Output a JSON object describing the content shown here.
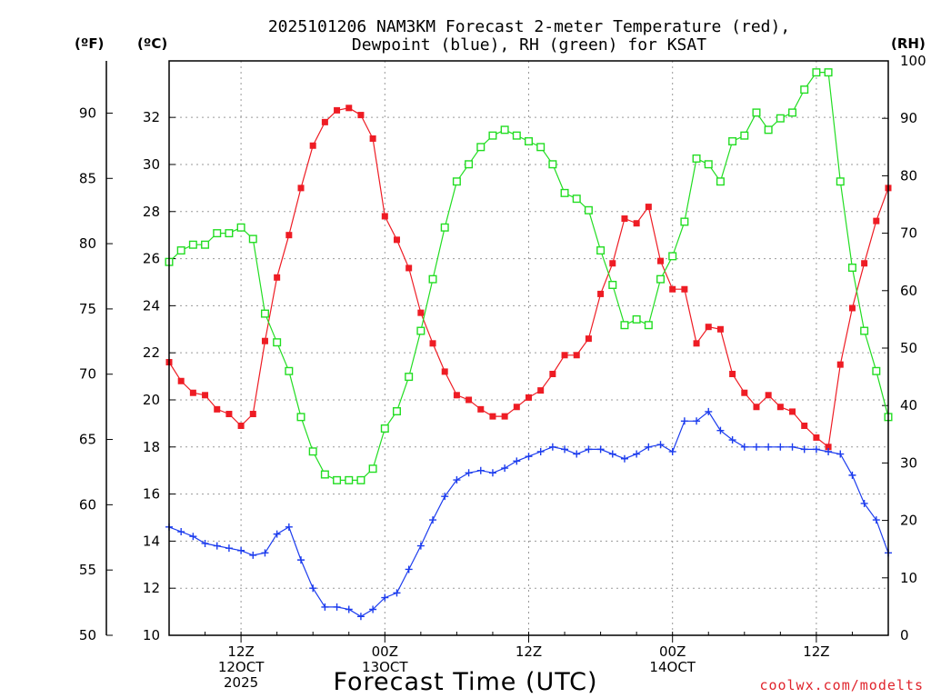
{
  "chart_data": {
    "type": "line",
    "title_lines": [
      "2025101206 NAM3KM Forecast 2-meter Temperature (red),",
      "Dewpoint (blue), RH (green) for KSAT"
    ],
    "xlabel": "Forecast Time (UTC)",
    "credit": "coolwx.com/modelts",
    "x_range_hours": [
      0,
      60
    ],
    "x_ticks": [
      {
        "hour": 6,
        "lines": [
          "12Z",
          "12OCT",
          "2025"
        ]
      },
      {
        "hour": 18,
        "lines": [
          "00Z",
          "13OCT"
        ]
      },
      {
        "hour": 30,
        "lines": [
          "12Z",
          ""
        ]
      },
      {
        "hour": 42,
        "lines": [
          "00Z",
          "14OCT"
        ]
      },
      {
        "hour": 54,
        "lines": [
          "12Z",
          ""
        ]
      }
    ],
    "axes": {
      "fahrenheit": {
        "unit_label": "(ºF)",
        "range": [
          50,
          94
        ],
        "ticks": [
          50,
          55,
          60,
          65,
          70,
          75,
          80,
          85,
          90
        ]
      },
      "celsius": {
        "unit_label": "(ºC)",
        "range": [
          10,
          34.4
        ],
        "ticks": [
          10,
          12,
          14,
          16,
          18,
          20,
          22,
          24,
          26,
          28,
          30,
          32
        ]
      },
      "rh": {
        "unit_label": "(RH)",
        "range": [
          0,
          100
        ],
        "ticks": [
          0,
          10,
          20,
          30,
          40,
          50,
          60,
          70,
          80,
          90,
          100
        ]
      }
    },
    "series": [
      {
        "name": "2-meter Temperature",
        "axis": "celsius",
        "color": "#ee1c24",
        "marker": "filled-square",
        "x": [
          0,
          1,
          2,
          3,
          4,
          5,
          6,
          7,
          8,
          9,
          10,
          11,
          12,
          13,
          14,
          15,
          16,
          17,
          18,
          19,
          20,
          21,
          22,
          23,
          24,
          25,
          26,
          27,
          28,
          29,
          30,
          31,
          32,
          33,
          34,
          35,
          36,
          37,
          38,
          39,
          40,
          41,
          42,
          43,
          44,
          45,
          46,
          47,
          48,
          49,
          50,
          51,
          52,
          53,
          54,
          55,
          56,
          57,
          58,
          59,
          60
        ],
        "values": [
          21.6,
          20.8,
          20.3,
          20.2,
          19.6,
          19.4,
          18.9,
          19.4,
          22.5,
          25.2,
          27.0,
          29.0,
          30.8,
          31.8,
          32.3,
          32.4,
          32.1,
          31.1,
          27.8,
          26.8,
          25.6,
          23.7,
          22.4,
          21.2,
          20.2,
          20.0,
          19.6,
          19.3,
          19.3,
          19.7,
          20.1,
          20.4,
          21.1,
          21.9,
          21.9,
          22.6,
          24.5,
          25.8,
          27.7,
          27.5,
          28.2,
          25.9,
          24.7,
          24.7,
          22.4,
          23.1,
          23.0,
          21.1,
          20.3,
          19.7,
          20.2,
          19.7,
          19.5,
          18.9,
          18.4,
          18.0,
          21.5,
          23.9,
          25.8,
          27.6,
          29.0
        ]
      },
      {
        "name": "Dewpoint",
        "axis": "celsius",
        "color": "#1c3cee",
        "marker": "plus",
        "x": [
          0,
          1,
          2,
          3,
          4,
          5,
          6,
          7,
          8,
          9,
          10,
          11,
          12,
          13,
          14,
          15,
          16,
          17,
          18,
          19,
          20,
          21,
          22,
          23,
          24,
          25,
          26,
          27,
          28,
          29,
          30,
          31,
          32,
          33,
          34,
          35,
          36,
          37,
          38,
          39,
          40,
          41,
          42,
          43,
          44,
          45,
          46,
          47,
          48,
          49,
          50,
          51,
          52,
          53,
          54,
          55,
          56,
          57,
          58,
          59,
          60
        ],
        "values": [
          14.6,
          14.4,
          14.2,
          13.9,
          13.8,
          13.7,
          13.6,
          13.4,
          13.5,
          14.3,
          14.6,
          13.2,
          12.0,
          11.2,
          11.2,
          11.1,
          10.8,
          11.1,
          11.6,
          11.8,
          12.8,
          13.8,
          14.9,
          15.9,
          16.6,
          16.9,
          17.0,
          16.9,
          17.1,
          17.4,
          17.6,
          17.8,
          18.0,
          17.9,
          17.7,
          17.9,
          17.9,
          17.7,
          17.5,
          17.7,
          18.0,
          18.1,
          17.8,
          19.1,
          19.1,
          19.5,
          18.7,
          18.3,
          18.0,
          18.0,
          18.0,
          18.0,
          18.0,
          17.9,
          17.9,
          17.8,
          17.7,
          16.8,
          15.6,
          14.9,
          13.5
        ]
      },
      {
        "name": "RH",
        "axis": "rh",
        "color": "#22dd22",
        "marker": "open-square",
        "x": [
          0,
          1,
          2,
          3,
          4,
          5,
          6,
          7,
          8,
          9,
          10,
          11,
          12,
          13,
          14,
          15,
          16,
          17,
          18,
          19,
          20,
          21,
          22,
          23,
          24,
          25,
          26,
          27,
          28,
          29,
          30,
          31,
          32,
          33,
          34,
          35,
          36,
          37,
          38,
          39,
          40,
          41,
          42,
          43,
          44,
          45,
          46,
          47,
          48,
          49,
          50,
          51,
          52,
          53,
          54,
          55,
          56,
          57,
          58,
          59,
          60
        ],
        "values": [
          65,
          67,
          68,
          68,
          70,
          70,
          71,
          69,
          56,
          51,
          46,
          38,
          32,
          28,
          27,
          27,
          27,
          29,
          36,
          39,
          45,
          53,
          62,
          71,
          79,
          82,
          85,
          87,
          88,
          87,
          86,
          85,
          82,
          77,
          76,
          74,
          67,
          61,
          54,
          55,
          54,
          62,
          66,
          72,
          83,
          82,
          79,
          86,
          87,
          91,
          88,
          90,
          91,
          95,
          98,
          98,
          79,
          64,
          53,
          46,
          38
        ]
      }
    ]
  }
}
